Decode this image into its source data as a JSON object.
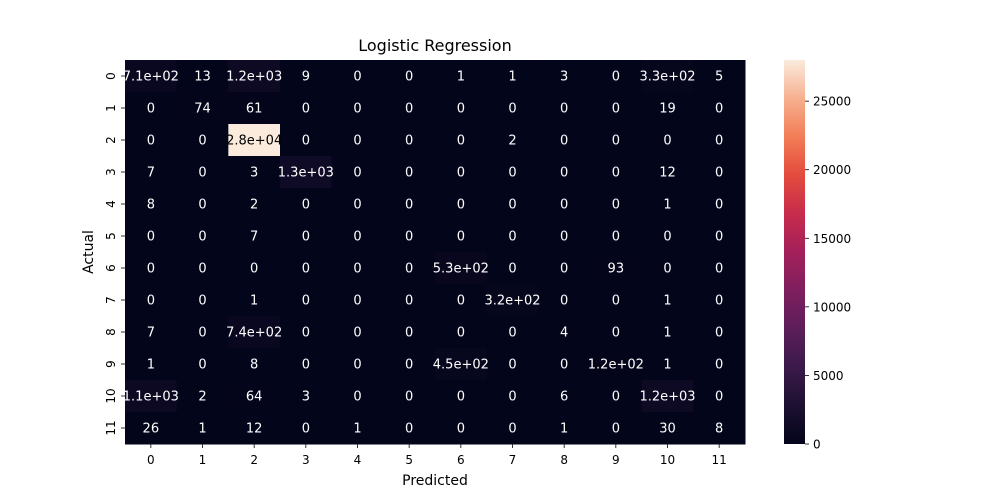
{
  "chart_data": {
    "type": "heatmap",
    "title": "Logistic Regression",
    "xlabel": "Predicted",
    "ylabel": "Actual",
    "x_categories": [
      "0",
      "1",
      "2",
      "3",
      "4",
      "5",
      "6",
      "7",
      "8",
      "9",
      "10",
      "11"
    ],
    "y_categories": [
      "0",
      "1",
      "2",
      "3",
      "4",
      "5",
      "6",
      "7",
      "8",
      "9",
      "10",
      "11"
    ],
    "values": [
      [
        710,
        13,
        1200,
        9,
        0,
        0,
        1,
        1,
        3,
        0,
        330,
        5
      ],
      [
        0,
        74,
        61,
        0,
        0,
        0,
        0,
        0,
        0,
        0,
        19,
        0
      ],
      [
        0,
        0,
        28000,
        0,
        0,
        0,
        0,
        2,
        0,
        0,
        0,
        0
      ],
      [
        7,
        0,
        3,
        1300,
        0,
        0,
        0,
        0,
        0,
        0,
        12,
        0
      ],
      [
        8,
        0,
        2,
        0,
        0,
        0,
        0,
        0,
        0,
        0,
        1,
        0
      ],
      [
        0,
        0,
        7,
        0,
        0,
        0,
        0,
        0,
        0,
        0,
        0,
        0
      ],
      [
        0,
        0,
        0,
        0,
        0,
        0,
        530,
        0,
        0,
        93,
        0,
        0
      ],
      [
        0,
        0,
        1,
        0,
        0,
        0,
        0,
        320,
        0,
        0,
        1,
        0
      ],
      [
        7,
        0,
        740,
        0,
        0,
        0,
        0,
        0,
        4,
        0,
        1,
        0
      ],
      [
        1,
        0,
        8,
        0,
        0,
        0,
        450,
        0,
        0,
        120,
        1,
        0
      ],
      [
        1100,
        2,
        64,
        3,
        0,
        0,
        0,
        0,
        6,
        0,
        1200,
        0
      ],
      [
        26,
        1,
        12,
        0,
        1,
        0,
        0,
        0,
        1,
        0,
        30,
        8
      ]
    ],
    "annotations": [
      [
        "7.1e+02",
        "13",
        "1.2e+03",
        "9",
        "0",
        "0",
        "1",
        "1",
        "3",
        "0",
        "3.3e+02",
        "5"
      ],
      [
        "0",
        "74",
        "61",
        "0",
        "0",
        "0",
        "0",
        "0",
        "0",
        "0",
        "19",
        "0"
      ],
      [
        "0",
        "0",
        "2.8e+04",
        "0",
        "0",
        "0",
        "0",
        "2",
        "0",
        "0",
        "0",
        "0"
      ],
      [
        "7",
        "0",
        "3",
        "1.3e+03",
        "0",
        "0",
        "0",
        "0",
        "0",
        "0",
        "12",
        "0"
      ],
      [
        "8",
        "0",
        "2",
        "0",
        "0",
        "0",
        "0",
        "0",
        "0",
        "0",
        "1",
        "0"
      ],
      [
        "0",
        "0",
        "7",
        "0",
        "0",
        "0",
        "0",
        "0",
        "0",
        "0",
        "0",
        "0"
      ],
      [
        "0",
        "0",
        "0",
        "0",
        "0",
        "0",
        "5.3e+02",
        "0",
        "0",
        "93",
        "0",
        "0"
      ],
      [
        "0",
        "0",
        "1",
        "0",
        "0",
        "0",
        "0",
        "3.2e+02",
        "0",
        "0",
        "1",
        "0"
      ],
      [
        "7",
        "0",
        "7.4e+02",
        "0",
        "0",
        "0",
        "0",
        "0",
        "4",
        "0",
        "1",
        "0"
      ],
      [
        "1",
        "0",
        "8",
        "0",
        "0",
        "0",
        "4.5e+02",
        "0",
        "0",
        "1.2e+02",
        "1",
        "0"
      ],
      [
        "1.1e+03",
        "2",
        "64",
        "3",
        "0",
        "0",
        "0",
        "0",
        "6",
        "0",
        "1.2e+03",
        "0"
      ],
      [
        "26",
        "1",
        "12",
        "0",
        "1",
        "0",
        "0",
        "0",
        "1",
        "0",
        "30",
        "8"
      ]
    ],
    "colormap": "rocket",
    "vmin": 0,
    "vmax": 28000,
    "colorbar_ticks": [
      0,
      5000,
      10000,
      15000,
      20000,
      25000
    ],
    "colorbar_tick_labels": [
      "0",
      "5000",
      "10000",
      "15000",
      "20000",
      "25000"
    ],
    "grid": false,
    "legend": "colorbar-right"
  }
}
